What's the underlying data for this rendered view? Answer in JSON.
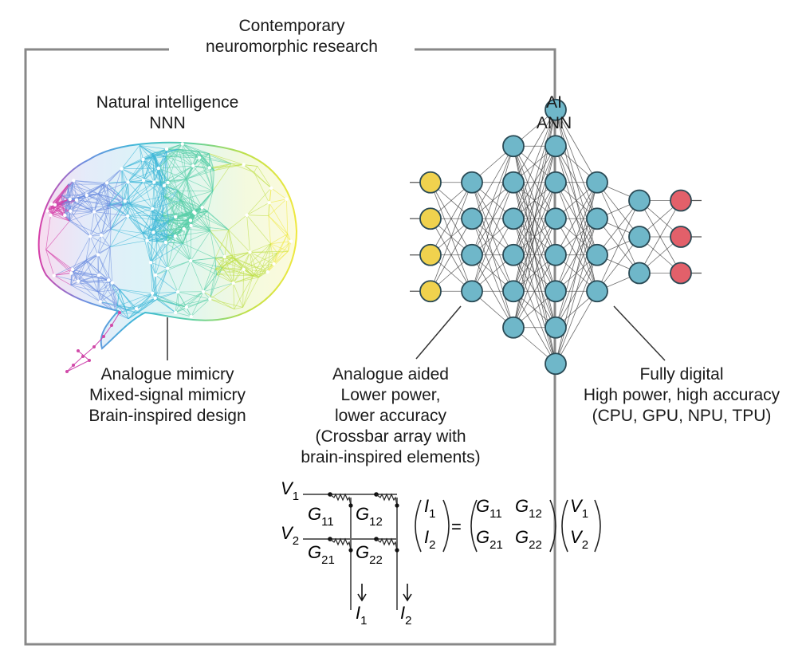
{
  "frame_title": [
    "Contemporary",
    "neuromorphic research"
  ],
  "nnn": {
    "title": [
      "Natural intelligence",
      "NNN"
    ],
    "caption": [
      "Analogue mimicry",
      "Mixed-signal mimicry",
      "Brain-inspired design"
    ]
  },
  "ann": {
    "title": [
      "AI",
      "ANN"
    ],
    "layers": [
      {
        "count": 4,
        "color": "#f0d24e"
      },
      {
        "count": 4,
        "color": "#6fb7c9"
      },
      {
        "count": 6,
        "color": "#6fb7c9"
      },
      {
        "count": 8,
        "color": "#6fb7c9"
      },
      {
        "count": 4,
        "color": "#6fb7c9"
      },
      {
        "count": 3,
        "color": "#6fb7c9"
      },
      {
        "count": 3,
        "color": "#e2606a"
      }
    ],
    "caption_analogue": [
      "Analogue aided",
      "Lower power,",
      "lower accuracy",
      "(Crossbar array with",
      "brain-inspired elements)"
    ],
    "caption_digital": [
      "Fully digital",
      "High power, high accuracy",
      "(CPU, GPU, NPU, TPU)"
    ]
  },
  "crossbar": {
    "voltages": [
      {
        "sym": "V",
        "sub": "1"
      },
      {
        "sym": "V",
        "sub": "2"
      }
    ],
    "conductances": [
      {
        "sym": "G",
        "sub": "11"
      },
      {
        "sym": "G",
        "sub": "12"
      },
      {
        "sym": "G",
        "sub": "21"
      },
      {
        "sym": "G",
        "sub": "22"
      }
    ],
    "currents": [
      {
        "sym": "I",
        "sub": "1"
      },
      {
        "sym": "I",
        "sub": "2"
      }
    ],
    "equation": {
      "lhs": [
        {
          "sym": "I",
          "sub": "1"
        },
        {
          "sym": "I",
          "sub": "2"
        }
      ],
      "equals": "=",
      "matrix": [
        [
          {
            "sym": "G",
            "sub": "11"
          },
          {
            "sym": "G",
            "sub": "12"
          }
        ],
        [
          {
            "sym": "G",
            "sub": "21"
          },
          {
            "sym": "G",
            "sub": "22"
          }
        ]
      ],
      "rhs": [
        {
          "sym": "V",
          "sub": "1"
        },
        {
          "sym": "V",
          "sub": "2"
        }
      ]
    }
  },
  "colors": {
    "frame": "#888888",
    "ann_edge": "#3a3a3a",
    "node_stroke": "#2a4a55",
    "nnn_gradient": [
      "#d63ea8",
      "#6d8fe0",
      "#3fb8d8",
      "#58cfa8",
      "#bfe04a",
      "#efe83e"
    ]
  }
}
